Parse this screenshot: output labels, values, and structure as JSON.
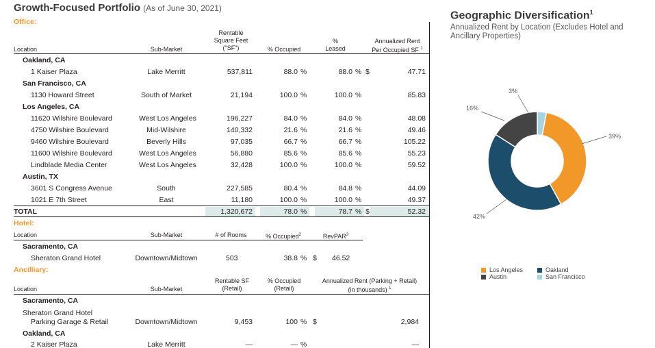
{
  "title": {
    "main": "Growth-Focused Portfolio",
    "asof": "(As of June 30, 2021)"
  },
  "office": {
    "section_label": "Office:",
    "headers": {
      "location": "Location",
      "submarket": "Sub-Market",
      "rsf_l1": "Rentable",
      "rsf_l2": "Square Feet",
      "rsf_l3": "(\"SF\")",
      "occupied": "% Occupied",
      "leased_l1": "%",
      "leased_l2": "Leased",
      "rent_l1": "Annualized Rent",
      "rent_l2": "Per Occupied SF",
      "rent_sup": "1"
    },
    "cities": {
      "oakland": "Oakland, CA",
      "sf": "San Francisco, CA",
      "la": "Los Angeles, CA",
      "austin": "Austin, TX"
    },
    "rows": [
      {
        "location": "1 Kaiser Plaza",
        "submarket": "Lake Merritt",
        "sf": "537,811",
        "occ": "88.0",
        "leased": "88.0",
        "rent": "47.71",
        "dollar": "$"
      },
      {
        "location": "1130 Howard Street",
        "submarket": "South of Market",
        "sf": "21,194",
        "occ": "100.0",
        "leased": "100.0",
        "rent": "85.83"
      },
      {
        "location": "11620 Wilshire Boulevard",
        "submarket": "West Los Angeles",
        "sf": "196,227",
        "occ": "84.0",
        "leased": "84.0",
        "rent": "48.08"
      },
      {
        "location": "4750 Wilshire Boulevard",
        "submarket": "Mid-Wilshire",
        "sf": "140,332",
        "occ": "21.6",
        "leased": "21.6",
        "rent": "49.46"
      },
      {
        "location": "9460 Wilshire Boulevard",
        "submarket": "Beverly Hills",
        "sf": "97,035",
        "occ": "66.7",
        "leased": "66.7",
        "rent": "105.22"
      },
      {
        "location": "11600 Wilshire Boulevard",
        "submarket": "West Los Angeles",
        "sf": "56,880",
        "occ": "85.6",
        "leased": "85.6",
        "rent": "55.23"
      },
      {
        "location": "Lindblade Media Center",
        "submarket": "West Los Angeles",
        "sf": "32,428",
        "occ": "100.0",
        "leased": "100.0",
        "rent": "59.52"
      },
      {
        "location": "3601 S Congress Avenue",
        "submarket": "South",
        "sf": "227,585",
        "occ": "80.4",
        "leased": "84.8",
        "rent": "44.09"
      },
      {
        "location": "1021 E 7th Street",
        "submarket": "East",
        "sf": "11,180",
        "occ": "100.0",
        "leased": "100.0",
        "rent": "49.37"
      }
    ],
    "total": {
      "label": "TOTAL",
      "sf": "1,320,672",
      "occ": "78.0",
      "leased": "78.7",
      "dollar": "$",
      "rent": "52.32"
    },
    "pct_sign": "%"
  },
  "hotel": {
    "section_label": "Hotel:",
    "headers": {
      "location": "Location",
      "submarket": "Sub-Market",
      "rooms": "# of Rooms",
      "occupied": "% Occupied",
      "occ_sup": "2",
      "revpar": "RevPAR",
      "revpar_sup": "3"
    },
    "city": "Sacramento, CA",
    "row": {
      "location": "Sheraton Grand Hotel",
      "submarket": "Downtown/Midtown",
      "rooms": "503",
      "occ": "38.8",
      "pct": "%",
      "dollar": "$",
      "revpar": "46.52"
    }
  },
  "ancillary": {
    "section_label": "Ancilliary:",
    "headers": {
      "location": "Location",
      "submarket": "Sub-Market",
      "rsf_l1": "Rentable SF",
      "rsf_l2": "(Retail)",
      "occ_l1": "% Occupied",
      "occ_l2": "(Retail)",
      "rent_l1": "Annualized Rent (Parking + Retail)",
      "rent_l2": "(in thousands)",
      "rent_sup": "1"
    },
    "city1": "Sacramento, CA",
    "row1": {
      "loc_l1": "Sheraton Grand Hotel",
      "loc_l2": "Parking Garage & Retail",
      "submarket": "Downtown/Midtown",
      "sf": "9,453",
      "occ": "100",
      "pct": "%",
      "dollar": "$",
      "rent": "2,984"
    },
    "city2": "Oakland, CA",
    "row2": {
      "location": "2 Kaiser Plaza",
      "submarket": "Lake Merritt",
      "sf": "—",
      "occ": "—",
      "pct": "%",
      "rent": "—"
    }
  },
  "geo": {
    "title": "Geographic Diversification",
    "title_sup": "1",
    "subtitle": "Annualized Rent by Location (Excludes Hotel and Ancillary Properties)"
  },
  "chart_data": {
    "type": "pie",
    "title": "Geographic Diversification",
    "subtitle": "Annualized Rent by Location (Excludes Hotel and Ancillary Properties)",
    "donut": true,
    "categories": [
      "Los Angeles",
      "Oakland",
      "Austin",
      "San Francisco"
    ],
    "values": [
      39,
      42,
      16,
      3
    ],
    "labels": [
      "39%",
      "42%",
      "16%",
      "3%"
    ],
    "colors": [
      "#f29829",
      "#1c4e6b",
      "#444444",
      "#a6d4e3"
    ],
    "legend_position": "bottom"
  }
}
